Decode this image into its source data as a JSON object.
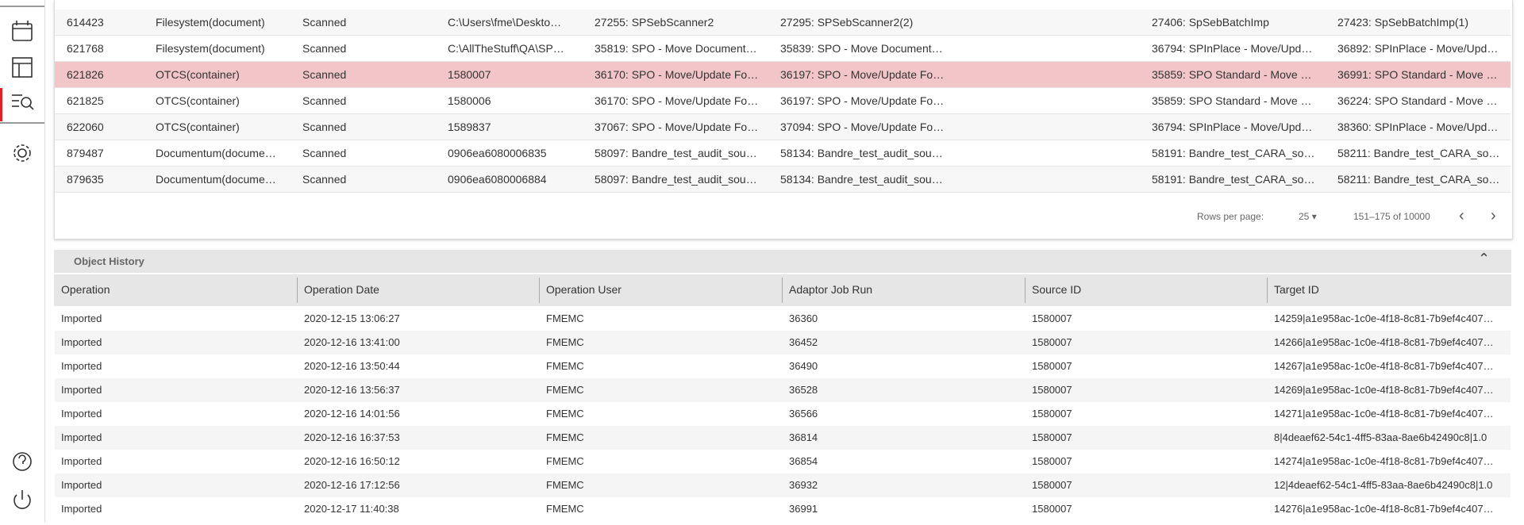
{
  "scan_table": {
    "rows": [
      [
        "614423",
        "Filesystem(document)",
        "Scanned",
        "C:\\Users\\fme\\Deskto…",
        "27255: SPSebScanner2",
        "27295: SPSebScanner2(2)",
        "27406: SpSebBatchImp",
        "27423: SpSebBatchImp(1)"
      ],
      [
        "621768",
        "Filesystem(document)",
        "Scanned",
        "C:\\AllTheStuff\\QA\\SP…",
        "35819: SPO - Move Document…",
        "35839: SPO - Move Document…",
        "36794: SPInPlace - Move/Upd…",
        "36892: SPInPlace - Move/Upd…"
      ],
      [
        "621826",
        "OTCS(container)",
        "Scanned",
        "1580007",
        "36170: SPO - Move/Update Fo…",
        "36197: SPO - Move/Update Fo…",
        "35859: SPO Standard - Move …",
        "36991: SPO Standard - Move …"
      ],
      [
        "621825",
        "OTCS(container)",
        "Scanned",
        "1580006",
        "36170: SPO - Move/Update Fo…",
        "36197: SPO - Move/Update Fo…",
        "35859: SPO Standard - Move …",
        "36224: SPO Standard - Move …"
      ],
      [
        "622060",
        "OTCS(container)",
        "Scanned",
        "1589837",
        "37067: SPO - Move/Update Fo…",
        "37094: SPO - Move/Update Fo…",
        "36794: SPInPlace - Move/Upd…",
        "38360: SPInPlace - Move/Upd…"
      ],
      [
        "879487",
        "Documentum(docume…",
        "Scanned",
        "0906ea6080006835",
        "58097: Bandre_test_audit_sou…",
        "58134: Bandre_test_audit_sou…",
        "58191: Bandre_test_CARA_so…",
        "58211: Bandre_test_CARA_so…"
      ],
      [
        "879635",
        "Documentum(docume…",
        "Scanned",
        "0906ea6080006884",
        "58097: Bandre_test_audit_sou…",
        "58134: Bandre_test_audit_sou…",
        "58191: Bandre_test_CARA_so…",
        "58211: Bandre_test_CARA_so…"
      ]
    ],
    "pagination": {
      "rows_per_page_label": "Rows per page:",
      "rows_per_page": "25",
      "range": "151–175 of 10000"
    }
  },
  "object_history": {
    "title": "Object History",
    "columns": [
      "Operation",
      "Operation Date",
      "Operation User",
      "Adaptor Job Run",
      "Source ID",
      "Target ID"
    ],
    "rows": [
      [
        "Imported",
        "2020-12-15 13:06:27",
        "FMEMC",
        "36360",
        "1580007",
        "14259|a1e958ac-1c0e-4f18-8c81-7b9ef4c407…"
      ],
      [
        "Imported",
        "2020-12-16 13:41:00",
        "FMEMC",
        "36452",
        "1580007",
        "14266|a1e958ac-1c0e-4f18-8c81-7b9ef4c407…"
      ],
      [
        "Imported",
        "2020-12-16 13:50:44",
        "FMEMC",
        "36490",
        "1580007",
        "14267|a1e958ac-1c0e-4f18-8c81-7b9ef4c407…"
      ],
      [
        "Imported",
        "2020-12-16 13:56:37",
        "FMEMC",
        "36528",
        "1580007",
        "14269|a1e958ac-1c0e-4f18-8c81-7b9ef4c407…"
      ],
      [
        "Imported",
        "2020-12-16 14:01:56",
        "FMEMC",
        "36566",
        "1580007",
        "14271|a1e958ac-1c0e-4f18-8c81-7b9ef4c407…"
      ],
      [
        "Imported",
        "2020-12-16 16:37:53",
        "FMEMC",
        "36814",
        "1580007",
        "8|4deaef62-54c1-4ff5-83aa-8ae6b42490c8|1.0"
      ],
      [
        "Imported",
        "2020-12-16 16:50:12",
        "FMEMC",
        "36854",
        "1580007",
        "14274|a1e958ac-1c0e-4f18-8c81-7b9ef4c407…"
      ],
      [
        "Imported",
        "2020-12-16 17:12:56",
        "FMEMC",
        "36932",
        "1580007",
        "12|4deaef62-54c1-4ff5-83aa-8ae6b42490c8|1.0"
      ],
      [
        "Imported",
        "2020-12-17 11:40:38",
        "FMEMC",
        "36991",
        "1580007",
        "14276|a1e958ac-1c0e-4f18-8c81-7b9ef4c407…"
      ]
    ]
  }
}
